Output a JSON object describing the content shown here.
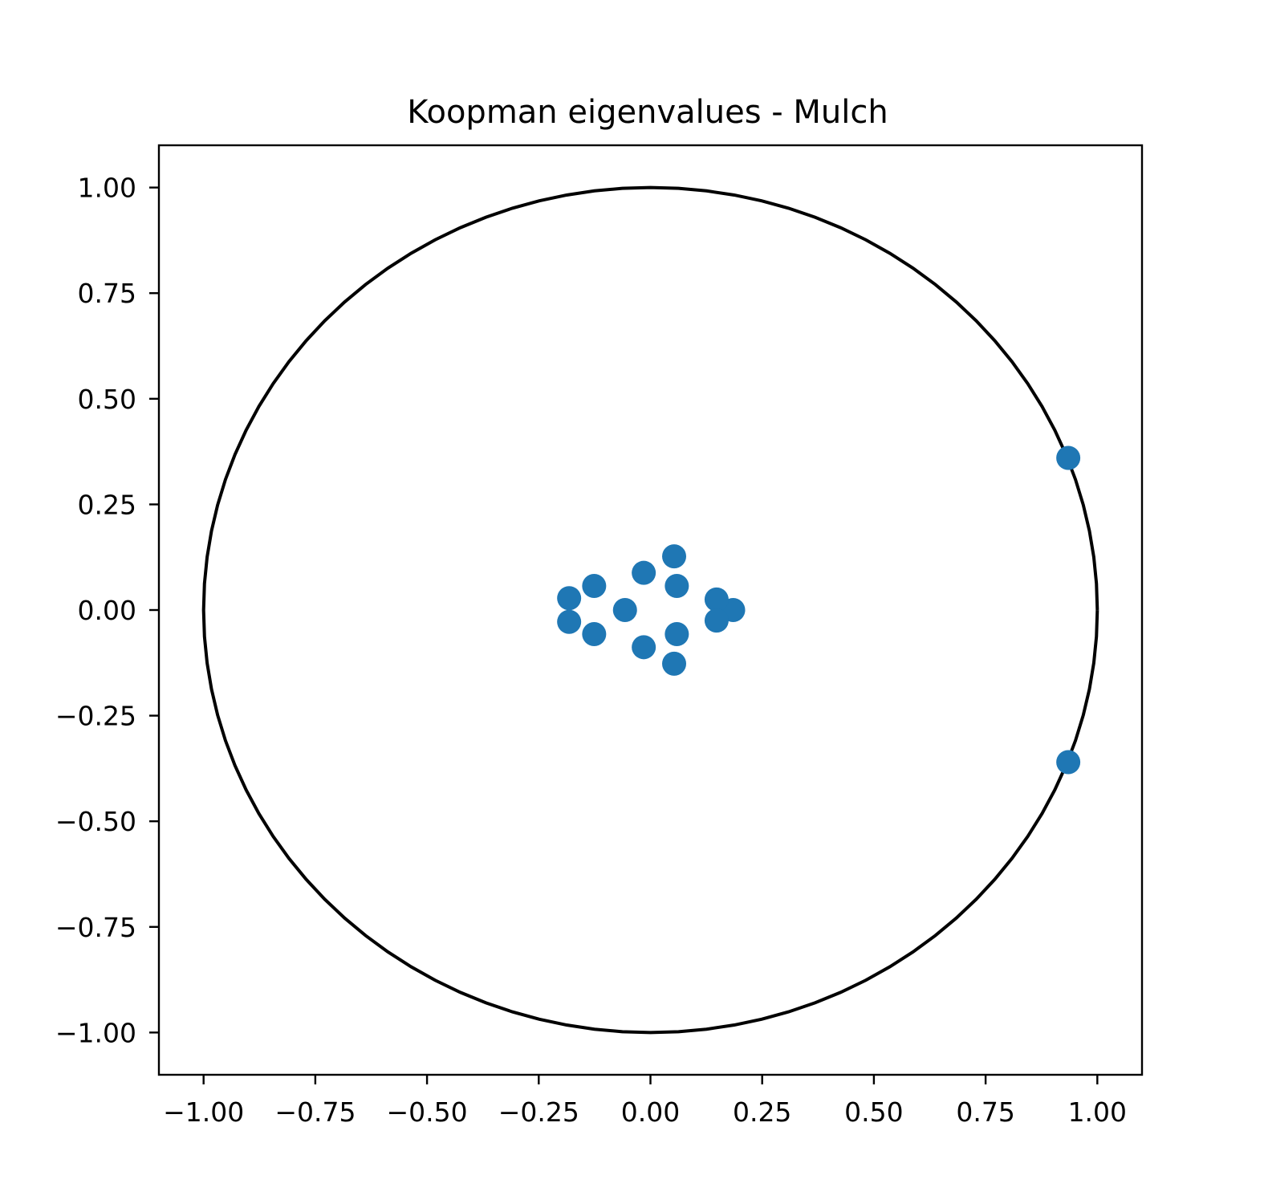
{
  "chart_data": {
    "type": "scatter",
    "title": "Koopman eigenvalues - Mulch",
    "xlabel": "",
    "ylabel": "",
    "xlim": [
      -1.1,
      1.1
    ],
    "ylim": [
      -1.1,
      1.1
    ],
    "xticks": [
      -1.0,
      -0.75,
      -0.5,
      -0.25,
      0.0,
      0.25,
      0.5,
      0.75,
      1.0
    ],
    "xtick_labels": [
      "−1.00",
      "−0.75",
      "−0.50",
      "−0.25",
      "0.00",
      "0.25",
      "0.50",
      "0.75",
      "1.00"
    ],
    "yticks": [
      1.0,
      0.75,
      0.5,
      0.25,
      0.0,
      -0.25,
      -0.5,
      -0.75,
      -1.0
    ],
    "ytick_labels": [
      "1.00",
      "0.75",
      "0.50",
      "0.25",
      "0.00",
      "−0.25",
      "−0.50",
      "−0.75",
      "−1.00"
    ],
    "grid": false,
    "unit_circle": {
      "color": "#000000"
    },
    "series": [
      {
        "color": "#1f77b4",
        "points": [
          {
            "x": 0.935,
            "y": 0.36
          },
          {
            "x": 0.935,
            "y": -0.36
          },
          {
            "x": 0.185,
            "y": 0.0
          },
          {
            "x": 0.148,
            "y": 0.025
          },
          {
            "x": 0.148,
            "y": -0.025
          },
          {
            "x": 0.053,
            "y": 0.127
          },
          {
            "x": 0.053,
            "y": -0.127
          },
          {
            "x": 0.059,
            "y": 0.057
          },
          {
            "x": 0.059,
            "y": -0.057
          },
          {
            "x": -0.015,
            "y": 0.088
          },
          {
            "x": -0.015,
            "y": -0.088
          },
          {
            "x": -0.057,
            "y": 0.0
          },
          {
            "x": -0.126,
            "y": 0.057
          },
          {
            "x": -0.126,
            "y": -0.057
          },
          {
            "x": -0.182,
            "y": 0.028
          },
          {
            "x": -0.182,
            "y": -0.028
          }
        ]
      }
    ]
  }
}
